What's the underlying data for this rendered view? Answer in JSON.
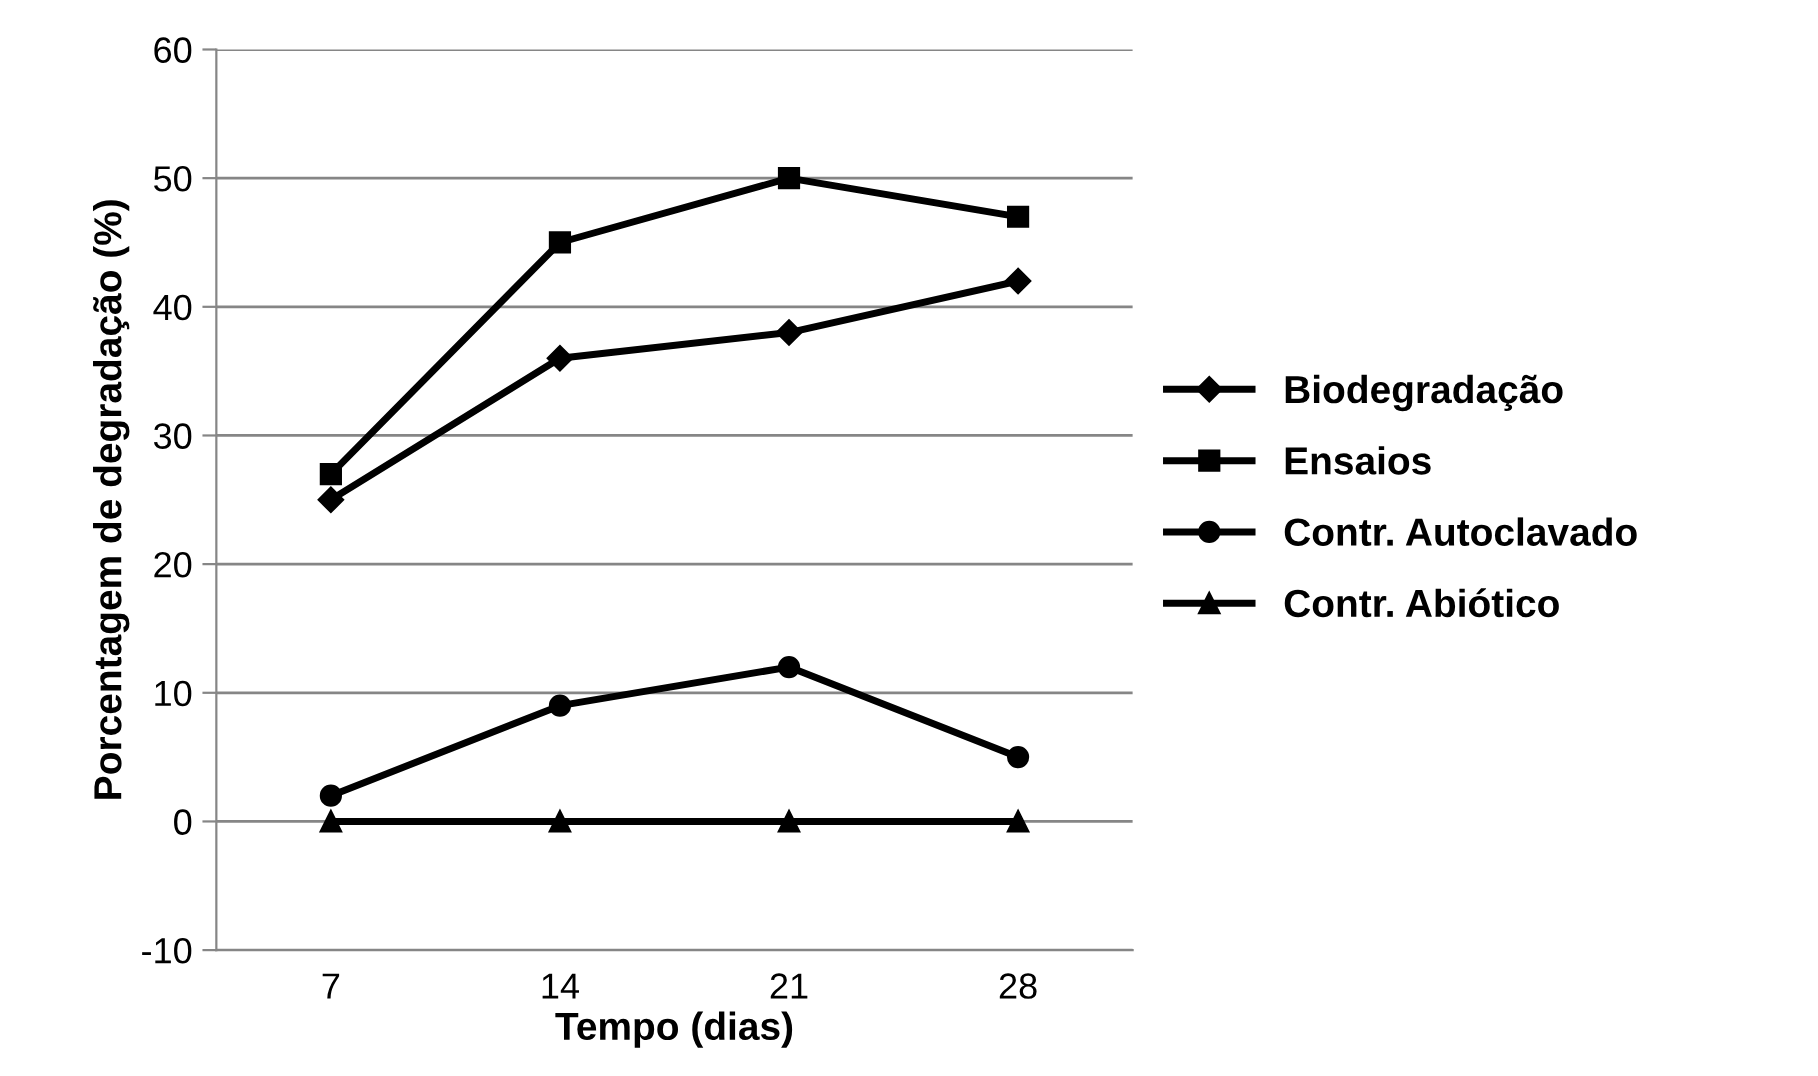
{
  "chart_data": {
    "type": "line",
    "xlabel": "Tempo (dias)",
    "ylabel": "Porcentagem de degradação (%)",
    "categories": [
      "7",
      "14",
      "21",
      "28"
    ],
    "series": [
      {
        "name": "Biodegradação",
        "color": "#000000",
        "marker": "diamond",
        "values": [
          25,
          36,
          38,
          42
        ]
      },
      {
        "name": "Ensaios",
        "color": "#000000",
        "marker": "square",
        "values": [
          27,
          45,
          50,
          47
        ]
      },
      {
        "name": "Contr. Autoclavado",
        "color": "#000000",
        "marker": "circle",
        "values": [
          2,
          9,
          12,
          5
        ]
      },
      {
        "name": "Contr. Abiótico",
        "color": "#000000",
        "marker": "triangle",
        "values": [
          0,
          0,
          0,
          0
        ]
      }
    ],
    "ylim": [
      -10,
      60
    ],
    "yticks": [
      -10,
      0,
      10,
      20,
      30,
      40,
      50,
      60
    ],
    "grid": "y",
    "legend": "right",
    "line_style": "solid"
  }
}
